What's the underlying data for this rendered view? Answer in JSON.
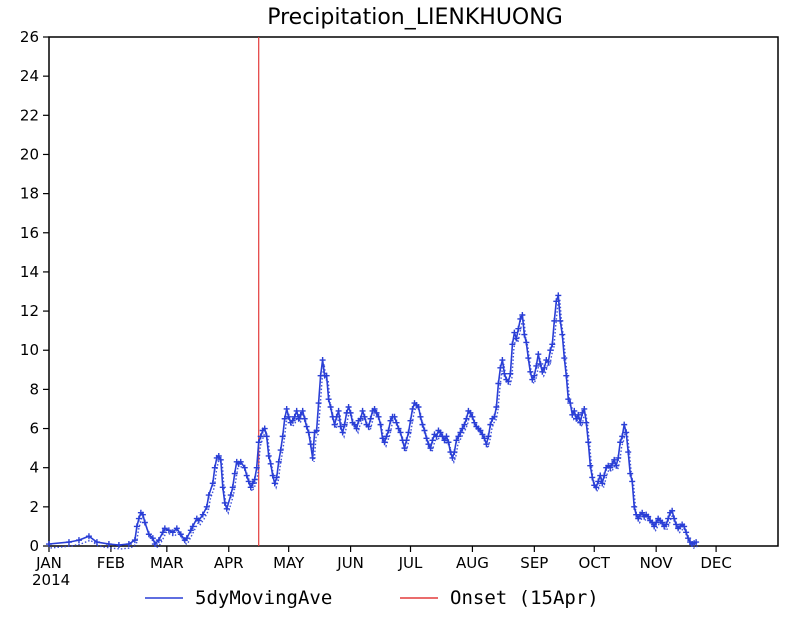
{
  "chart_data": {
    "type": "line",
    "title": "Precipitation_LIENKHUONG",
    "xlabel": "",
    "ylabel": "",
    "year_label": "2014",
    "xlim": [
      0,
      365
    ],
    "ylim": [
      0,
      26
    ],
    "yticks": [
      0,
      2,
      4,
      6,
      8,
      10,
      12,
      14,
      16,
      18,
      20,
      22,
      24,
      26
    ],
    "month_ticks": [
      {
        "label": "JAN",
        "day": 0
      },
      {
        "label": "FEB",
        "day": 31
      },
      {
        "label": "MAR",
        "day": 59
      },
      {
        "label": "APR",
        "day": 90
      },
      {
        "label": "MAY",
        "day": 120
      },
      {
        "label": "JUN",
        "day": 151
      },
      {
        "label": "JUL",
        "day": 181
      },
      {
        "label": "AUG",
        "day": 212
      },
      {
        "label": "SEP",
        "day": 243
      },
      {
        "label": "OCT",
        "day": 273
      },
      {
        "label": "NOV",
        "day": 304
      },
      {
        "label": "DEC",
        "day": 334
      }
    ],
    "series": [
      {
        "name": "5dyMovingAve",
        "color": "#2a3fd6",
        "marker": "plus",
        "points": [
          [
            0,
            0.1
          ],
          [
            10,
            0.2
          ],
          [
            15,
            0.3
          ],
          [
            20,
            0.5
          ],
          [
            24,
            0.2
          ],
          [
            30,
            0.1
          ],
          [
            35,
            0.05
          ],
          [
            40,
            0.1
          ],
          [
            43,
            0.3
          ],
          [
            44,
            1.0
          ],
          [
            45,
            1.4
          ],
          [
            46,
            1.7
          ],
          [
            47,
            1.6
          ],
          [
            48,
            1.2
          ],
          [
            50,
            0.6
          ],
          [
            52,
            0.4
          ],
          [
            53,
            0.1
          ],
          [
            55,
            0.3
          ],
          [
            57,
            0.7
          ],
          [
            58,
            0.9
          ],
          [
            60,
            0.8
          ],
          [
            62,
            0.7
          ],
          [
            64,
            0.9
          ],
          [
            66,
            0.6
          ],
          [
            68,
            0.3
          ],
          [
            69,
            0.4
          ],
          [
            71,
            0.8
          ],
          [
            72,
            1.0
          ],
          [
            74,
            1.4
          ],
          [
            75,
            1.3
          ],
          [
            77,
            1.6
          ],
          [
            79,
            2.0
          ],
          [
            80,
            2.6
          ],
          [
            82,
            3.2
          ],
          [
            83,
            4.0
          ],
          [
            84,
            4.5
          ],
          [
            85,
            4.6
          ],
          [
            86,
            4.4
          ],
          [
            87,
            3.0
          ],
          [
            88,
            2.2
          ],
          [
            89,
            1.9
          ],
          [
            91,
            2.6
          ],
          [
            92,
            3.0
          ],
          [
            93,
            3.7
          ],
          [
            94,
            4.3
          ],
          [
            95,
            4.2
          ],
          [
            96,
            4.3
          ],
          [
            98,
            4.0
          ],
          [
            99,
            3.6
          ],
          [
            100,
            3.3
          ],
          [
            101,
            3.0
          ],
          [
            102,
            3.2
          ],
          [
            103,
            3.4
          ],
          [
            104,
            4.0
          ],
          [
            105,
            5.3
          ],
          [
            106,
            5.6
          ],
          [
            107,
            5.9
          ],
          [
            108,
            6.0
          ],
          [
            109,
            5.6
          ],
          [
            110,
            4.6
          ],
          [
            111,
            4.2
          ],
          [
            112,
            3.6
          ],
          [
            113,
            3.2
          ],
          [
            114,
            3.5
          ],
          [
            115,
            4.3
          ],
          [
            116,
            4.9
          ],
          [
            117,
            5.6
          ],
          [
            118,
            6.5
          ],
          [
            119,
            7.0
          ],
          [
            120,
            6.6
          ],
          [
            121,
            6.3
          ],
          [
            122,
            6.4
          ],
          [
            123,
            6.6
          ],
          [
            124,
            6.9
          ],
          [
            125,
            6.5
          ],
          [
            126,
            6.7
          ],
          [
            127,
            6.9
          ],
          [
            128,
            6.5
          ],
          [
            129,
            6.1
          ],
          [
            130,
            5.8
          ],
          [
            131,
            5.2
          ],
          [
            132,
            4.5
          ],
          [
            133,
            5.8
          ],
          [
            134,
            5.9
          ],
          [
            135,
            7.3
          ],
          [
            136,
            8.7
          ],
          [
            137,
            9.5
          ],
          [
            138,
            8.7
          ],
          [
            139,
            8.7
          ],
          [
            140,
            7.5
          ],
          [
            141,
            7.1
          ],
          [
            142,
            6.6
          ],
          [
            143,
            6.2
          ],
          [
            144,
            6.6
          ],
          [
            145,
            6.9
          ],
          [
            146,
            6.1
          ],
          [
            147,
            5.8
          ],
          [
            148,
            6.2
          ],
          [
            149,
            6.8
          ],
          [
            150,
            7.1
          ],
          [
            151,
            6.8
          ],
          [
            152,
            6.3
          ],
          [
            153,
            6.2
          ],
          [
            154,
            6.0
          ],
          [
            155,
            6.4
          ],
          [
            156,
            6.5
          ],
          [
            157,
            6.9
          ],
          [
            158,
            6.6
          ],
          [
            159,
            6.2
          ],
          [
            160,
            6.1
          ],
          [
            161,
            6.5
          ],
          [
            162,
            6.9
          ],
          [
            163,
            7.0
          ],
          [
            164,
            6.8
          ],
          [
            165,
            6.6
          ],
          [
            166,
            6.2
          ],
          [
            167,
            5.5
          ],
          [
            168,
            5.3
          ],
          [
            169,
            5.6
          ],
          [
            170,
            5.9
          ],
          [
            171,
            6.4
          ],
          [
            172,
            6.6
          ],
          [
            173,
            6.6
          ],
          [
            174,
            6.3
          ],
          [
            175,
            6.0
          ],
          [
            176,
            5.8
          ],
          [
            177,
            5.4
          ],
          [
            178,
            5.0
          ],
          [
            179,
            5.4
          ],
          [
            180,
            5.8
          ],
          [
            181,
            6.4
          ],
          [
            182,
            7.0
          ],
          [
            183,
            7.3
          ],
          [
            184,
            7.2
          ],
          [
            185,
            7.1
          ],
          [
            186,
            6.6
          ],
          [
            187,
            6.2
          ],
          [
            188,
            5.9
          ],
          [
            189,
            5.5
          ],
          [
            190,
            5.2
          ],
          [
            191,
            5.0
          ],
          [
            192,
            5.4
          ],
          [
            193,
            5.7
          ],
          [
            194,
            5.6
          ],
          [
            195,
            5.9
          ],
          [
            196,
            5.8
          ],
          [
            197,
            5.6
          ],
          [
            198,
            5.4
          ],
          [
            199,
            5.6
          ],
          [
            200,
            5.3
          ],
          [
            201,
            4.8
          ],
          [
            202,
            4.5
          ],
          [
            203,
            4.8
          ],
          [
            204,
            5.4
          ],
          [
            205,
            5.6
          ],
          [
            206,
            5.8
          ],
          [
            207,
            6.0
          ],
          [
            208,
            6.2
          ],
          [
            209,
            6.5
          ],
          [
            210,
            6.9
          ],
          [
            211,
            6.8
          ],
          [
            212,
            6.6
          ],
          [
            213,
            6.3
          ],
          [
            214,
            6.1
          ],
          [
            215,
            6.0
          ],
          [
            216,
            5.9
          ],
          [
            217,
            5.7
          ],
          [
            218,
            5.5
          ],
          [
            219,
            5.2
          ],
          [
            220,
            5.6
          ],
          [
            221,
            6.2
          ],
          [
            222,
            6.5
          ],
          [
            223,
            6.6
          ],
          [
            224,
            7.1
          ],
          [
            225,
            8.3
          ],
          [
            226,
            9.1
          ],
          [
            227,
            9.5
          ],
          [
            228,
            8.8
          ],
          [
            229,
            8.5
          ],
          [
            230,
            8.4
          ],
          [
            231,
            8.8
          ],
          [
            232,
            10.3
          ],
          [
            233,
            10.9
          ],
          [
            234,
            10.6
          ],
          [
            235,
            11.1
          ],
          [
            236,
            11.6
          ],
          [
            237,
            11.8
          ],
          [
            238,
            10.8
          ],
          [
            239,
            10.4
          ],
          [
            240,
            9.6
          ],
          [
            241,
            8.9
          ],
          [
            242,
            8.5
          ],
          [
            243,
            8.7
          ],
          [
            244,
            9.2
          ],
          [
            245,
            9.8
          ],
          [
            246,
            9.3
          ],
          [
            247,
            8.9
          ],
          [
            248,
            9.1
          ],
          [
            249,
            9.5
          ],
          [
            250,
            9.4
          ],
          [
            251,
            10.0
          ],
          [
            252,
            10.3
          ],
          [
            253,
            11.5
          ],
          [
            254,
            12.5
          ],
          [
            255,
            12.8
          ],
          [
            256,
            11.5
          ],
          [
            257,
            10.8
          ],
          [
            258,
            9.6
          ],
          [
            259,
            8.7
          ],
          [
            260,
            7.5
          ],
          [
            261,
            7.3
          ],
          [
            262,
            6.7
          ],
          [
            263,
            6.9
          ],
          [
            264,
            6.5
          ],
          [
            265,
            6.7
          ],
          [
            266,
            6.3
          ],
          [
            267,
            6.8
          ],
          [
            268,
            7.0
          ],
          [
            269,
            6.3
          ],
          [
            270,
            5.3
          ],
          [
            271,
            4.1
          ],
          [
            272,
            3.5
          ],
          [
            273,
            3.1
          ],
          [
            274,
            3.0
          ],
          [
            275,
            3.3
          ],
          [
            276,
            3.6
          ],
          [
            277,
            3.2
          ],
          [
            278,
            3.6
          ],
          [
            279,
            4.0
          ],
          [
            280,
            4.1
          ],
          [
            281,
            4.0
          ],
          [
            282,
            4.2
          ],
          [
            283,
            4.4
          ],
          [
            284,
            4.1
          ],
          [
            285,
            4.5
          ],
          [
            286,
            5.3
          ],
          [
            287,
            5.6
          ],
          [
            288,
            6.2
          ],
          [
            289,
            5.8
          ],
          [
            290,
            4.8
          ],
          [
            291,
            3.7
          ],
          [
            292,
            3.3
          ],
          [
            293,
            2.0
          ],
          [
            294,
            1.6
          ],
          [
            295,
            1.4
          ],
          [
            296,
            1.6
          ],
          [
            297,
            1.7
          ],
          [
            298,
            1.5
          ],
          [
            299,
            1.6
          ],
          [
            300,
            1.5
          ],
          [
            301,
            1.3
          ],
          [
            302,
            1.2
          ],
          [
            303,
            1.0
          ],
          [
            304,
            1.2
          ],
          [
            305,
            1.4
          ],
          [
            306,
            1.3
          ],
          [
            307,
            1.2
          ],
          [
            308,
            1.0
          ],
          [
            309,
            1.1
          ],
          [
            310,
            1.4
          ],
          [
            311,
            1.7
          ],
          [
            312,
            1.8
          ],
          [
            313,
            1.4
          ],
          [
            314,
            1.1
          ],
          [
            315,
            0.9
          ],
          [
            316,
            1.0
          ],
          [
            317,
            1.1
          ],
          [
            318,
            1.0
          ],
          [
            319,
            0.7
          ],
          [
            320,
            0.4
          ],
          [
            321,
            0.2
          ],
          [
            322,
            0.1
          ],
          [
            323,
            0.15
          ],
          [
            324,
            0.2
          ]
        ]
      },
      {
        "name": "Onset (15Apr)",
        "color": "#e33b3b",
        "day": 105
      }
    ],
    "legend": {
      "placement": "bottom",
      "entries": [
        {
          "label": "5dyMovingAve",
          "color": "#2a3fd6"
        },
        {
          "label": "Onset (15Apr)",
          "color": "#e33b3b"
        }
      ]
    }
  }
}
